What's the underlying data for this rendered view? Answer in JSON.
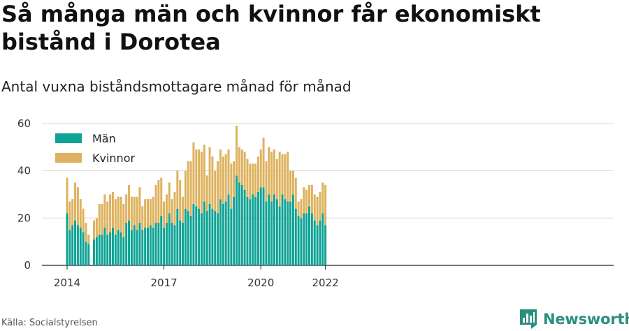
{
  "title": "Så många män och kvinnor får ekonomiskt bistånd i Dorotea",
  "subtitle": "Antal vuxna biståndsmottagare månad för månad",
  "source": "Källa: Socialstyrelsen",
  "brand": {
    "name": "Newsworthy",
    "icon": "newsworthy-logo-icon"
  },
  "colors": {
    "men": "#0fa396",
    "women": "#deb25e",
    "grid": "#dddddd",
    "axis": "#222222"
  },
  "chart_data": {
    "type": "bar",
    "stacked": true,
    "ylim": [
      0,
      62
    ],
    "yticks": [
      0,
      20,
      40,
      60
    ],
    "xticks": [
      {
        "label": "2014",
        "year": 2014,
        "month": 1
      },
      {
        "label": "2017",
        "year": 2017,
        "month": 1
      },
      {
        "label": "2020",
        "year": 2020,
        "month": 1
      },
      {
        "label": "2022",
        "year": 2022,
        "month": 1
      }
    ],
    "grid": true,
    "legend": "top-left",
    "start": {
      "year": 2014,
      "month": 1
    },
    "series": [
      {
        "name": "Män",
        "color": "#0fa396",
        "values": [
          22,
          15,
          17,
          19,
          17,
          16,
          14,
          10,
          9,
          null,
          11,
          12,
          13,
          13,
          16,
          13,
          14,
          16,
          13,
          15,
          14,
          12,
          18,
          19,
          15,
          17,
          15,
          18,
          15,
          16,
          16,
          17,
          16,
          18,
          18,
          21,
          16,
          18,
          22,
          18,
          17,
          24,
          19,
          18,
          24,
          23,
          21,
          26,
          25,
          24,
          22,
          27,
          23,
          26,
          24,
          23,
          22,
          28,
          26,
          27,
          30,
          24,
          29,
          38,
          35,
          34,
          32,
          29,
          28,
          30,
          29,
          31,
          33,
          33,
          27,
          30,
          27,
          30,
          28,
          25,
          30,
          28,
          27,
          27,
          30,
          24,
          21,
          20,
          22,
          22,
          25,
          22,
          19,
          17,
          19,
          22,
          17
        ]
      },
      {
        "name": "Kvinnor",
        "color": "#deb25e",
        "values": [
          15,
          12,
          11,
          16,
          16,
          12,
          10,
          8,
          4,
          null,
          8,
          8,
          13,
          13,
          14,
          14,
          16,
          15,
          15,
          14,
          15,
          14,
          12,
          15,
          14,
          12,
          14,
          15,
          10,
          12,
          12,
          11,
          13,
          16,
          18,
          16,
          11,
          12,
          13,
          10,
          14,
          16,
          17,
          11,
          16,
          21,
          23,
          26,
          24,
          25,
          26,
          24,
          15,
          24,
          22,
          17,
          22,
          21,
          20,
          20,
          19,
          19,
          15,
          21,
          15,
          15,
          16,
          16,
          15,
          13,
          14,
          15,
          16,
          21,
          17,
          20,
          21,
          19,
          17,
          23,
          17,
          19,
          21,
          13,
          10,
          13,
          6,
          8,
          11,
          10,
          9,
          12,
          11,
          12,
          12,
          13,
          17
        ]
      }
    ]
  }
}
